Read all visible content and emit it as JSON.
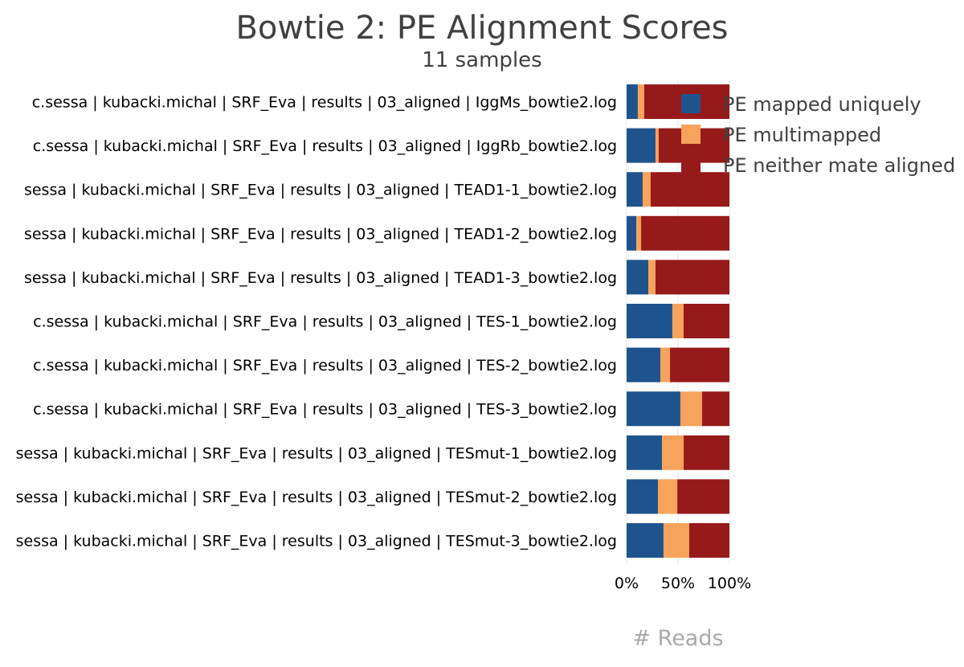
{
  "chart_data": {
    "type": "bar",
    "orientation": "horizontal",
    "stacked": true,
    "percent": true,
    "title": "Bowtie 2: PE Alignment Scores",
    "subtitle": "11 samples",
    "xlabel": "# Reads",
    "xlim": [
      0,
      100
    ],
    "xticks": [
      "0%",
      "50%",
      "100%"
    ],
    "categories": [
      "c.sessa | kubacki.michal | SRF_Eva | results | 03_aligned | IggMs_bowtie2.log",
      "c.sessa | kubacki.michal | SRF_Eva | results | 03_aligned | IggRb_bowtie2.log",
      "sessa | kubacki.michal | SRF_Eva | results | 03_aligned | TEAD1-1_bowtie2.log",
      "sessa | kubacki.michal | SRF_Eva | results | 03_aligned | TEAD1-2_bowtie2.log",
      "sessa | kubacki.michal | SRF_Eva | results | 03_aligned | TEAD1-3_bowtie2.log",
      "c.sessa | kubacki.michal | SRF_Eva | results | 03_aligned | TES-1_bowtie2.log",
      "c.sessa | kubacki.michal | SRF_Eva | results | 03_aligned | TES-2_bowtie2.log",
      "c.sessa | kubacki.michal | SRF_Eva | results | 03_aligned | TES-3_bowtie2.log",
      "sessa | kubacki.michal | SRF_Eva | results | 03_aligned | TESmut-1_bowtie2.log",
      "sessa | kubacki.michal | SRF_Eva | results | 03_aligned | TESmut-2_bowtie2.log",
      "sessa | kubacki.michal | SRF_Eva | results | 03_aligned | TESmut-3_bowtie2.log"
    ],
    "series": [
      {
        "name": "PE mapped uniquely",
        "color": "#1f538d",
        "values": [
          10.9,
          28.1,
          15.6,
          9.4,
          21.1,
          44.5,
          32.8,
          52.3,
          34.4,
          30.5,
          35.9
        ]
      },
      {
        "name": "PE multimapped",
        "color": "#f7a35c",
        "values": [
          6.2,
          3.1,
          7.8,
          4.7,
          7.0,
          10.9,
          9.4,
          21.1,
          21.1,
          18.8,
          25.0
        ]
      },
      {
        "name": "PE neither mate aligned",
        "color": "#971a1a",
        "values": [
          82.9,
          68.8,
          76.6,
          85.9,
          71.9,
          44.6,
          57.8,
          26.6,
          44.5,
          50.7,
          39.1
        ]
      }
    ],
    "legend": "top-right",
    "grid": true
  }
}
